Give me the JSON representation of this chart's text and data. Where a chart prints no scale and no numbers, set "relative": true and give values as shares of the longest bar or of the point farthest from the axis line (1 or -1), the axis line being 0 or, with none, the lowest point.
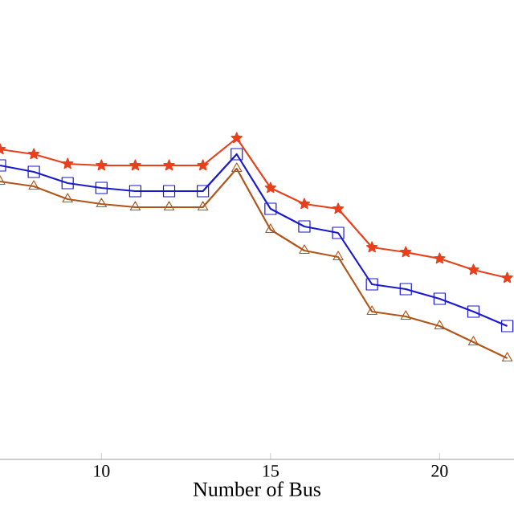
{
  "chart_data": {
    "type": "line",
    "relative": true,
    "xlabel": "Number of Bus",
    "x": [
      7,
      8,
      9,
      10,
      11,
      12,
      13,
      14,
      15,
      16,
      17,
      18,
      19,
      20,
      21,
      22
    ],
    "xlim": [
      7,
      22.2
    ],
    "xticks": [
      10,
      15,
      20
    ],
    "line_style": "solid",
    "series": [
      {
        "color": "#e8401c",
        "marker": "star",
        "values": [
          0.965,
          0.95,
          0.92,
          0.915,
          0.915,
          0.915,
          0.915,
          1,
          0.845,
          0.795,
          0.78,
          0.66,
          0.645,
          0.625,
          0.59,
          0.565
        ]
      },
      {
        "color": "#1a1acc",
        "marker": "square",
        "values": [
          0.915,
          0.895,
          0.86,
          0.845,
          0.835,
          0.835,
          0.835,
          0.95,
          0.78,
          0.725,
          0.705,
          0.545,
          0.53,
          0.5,
          0.46,
          0.415
        ]
      },
      {
        "color": "#b0561a",
        "marker": "triangle",
        "values": [
          0.865,
          0.85,
          0.81,
          0.795,
          0.785,
          0.785,
          0.785,
          0.905,
          0.715,
          0.65,
          0.63,
          0.46,
          0.445,
          0.415,
          0.365,
          0.315
        ]
      }
    ]
  }
}
